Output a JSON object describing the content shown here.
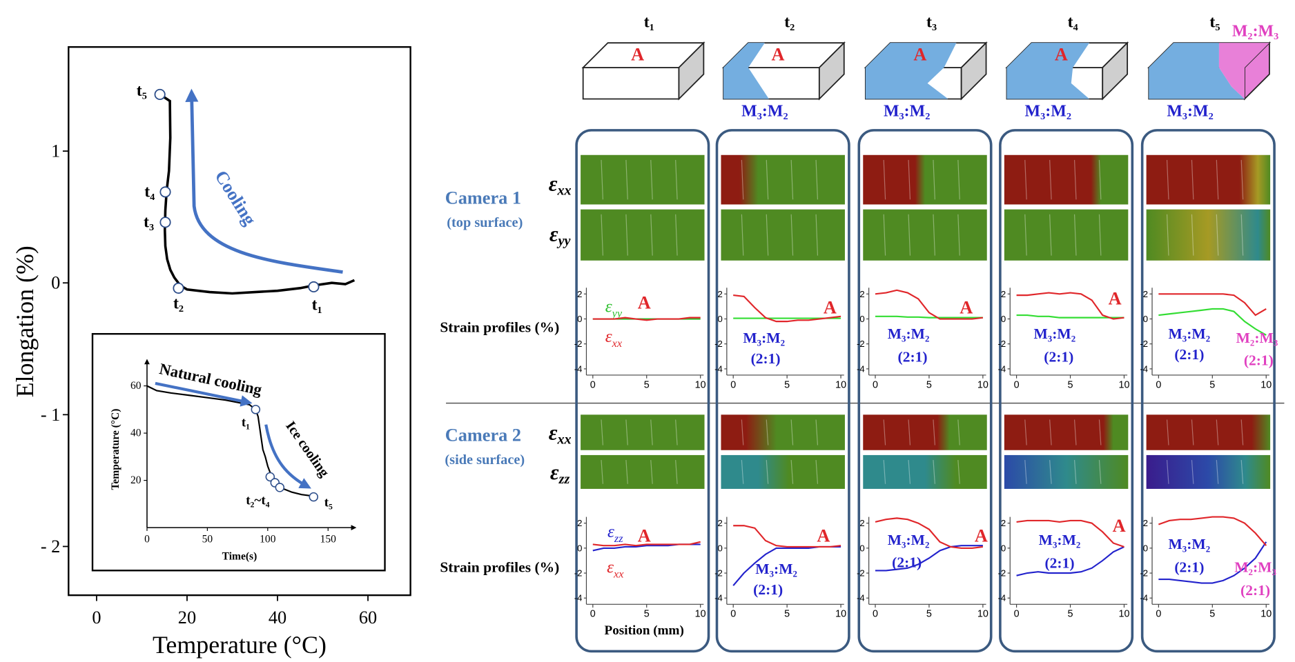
{
  "header": {
    "times": [
      "t₁",
      "t₂",
      "t₃",
      "t₄",
      "t₅"
    ],
    "box_A": [
      "A",
      "A",
      "A",
      "A"
    ],
    "box_phase": [
      "M₃:M₂",
      "M₃:M₂",
      "M₃:M₂",
      "M₃:M₂"
    ],
    "corner": "M₂:M₃"
  },
  "camera1": {
    "title": "Camera 1",
    "subtitle": "(top surface)",
    "maps": [
      {
        "text": "ε",
        "sub": "xx"
      },
      {
        "text": "ε",
        "sub": "yy"
      }
    ],
    "profile_label": "Strain profiles (%)"
  },
  "camera2": {
    "title": "Camera 2",
    "subtitle": "(side surface)",
    "maps": [
      {
        "text": "ε",
        "sub": "xx"
      },
      {
        "text": "ε",
        "sub": "zz"
      }
    ],
    "profile_label": "Strain profiles (%)"
  },
  "position_label": "Position (mm)",
  "chart_data": [
    {
      "type": "line",
      "xlabel": "Temperature (°C)",
      "ylabel": "Elongation (%)",
      "xlim": [
        -6.2,
        69.4
      ],
      "ylim": [
        -2.37,
        1.79
      ],
      "xticks": [
        0,
        20,
        40,
        60
      ],
      "yticks": [
        {
          "value": -2,
          "label": "- 2"
        },
        {
          "value": -1,
          "label": "- 1"
        },
        0,
        1
      ],
      "x": [
        14,
        16.2,
        16.3,
        16.0,
        15.5,
        15.2,
        15.1,
        15.2,
        15.6,
        16.3,
        17.2,
        18.5,
        20,
        25,
        30,
        35,
        40,
        45,
        48,
        52,
        55,
        57
      ],
      "series": [
        {
          "color": "#000000",
          "values": [
            1.43,
            1.38,
            1.1,
            0.85,
            0.7,
            0.55,
            0.4,
            0.28,
            0.18,
            0.1,
            0.04,
            -0.02,
            -0.05,
            -0.07,
            -0.08,
            -0.07,
            -0.06,
            -0.04,
            -0.02,
            0,
            -0.01,
            0.02
          ]
        }
      ],
      "markers": {
        "x": [
          48,
          18.1,
          15.2,
          15.2,
          14
        ],
        "y": [
          -0.03,
          -0.04,
          0.46,
          0.69,
          1.43
        ],
        "labels": [
          "t₁",
          "t₂",
          "t₃",
          "t₄",
          "t₅"
        ]
      },
      "annotation": "Cooling"
    },
    {
      "type": "line",
      "xlabel": "Time(s)",
      "ylabel": "Temperature (°C)",
      "xlim": [
        0,
        169
      ],
      "ylim": [
        0,
        67
      ],
      "xticks": [
        0,
        50,
        100,
        150
      ],
      "yticks": [
        20,
        40,
        60
      ],
      "x": [
        0,
        8,
        20,
        35,
        50,
        65,
        75,
        85,
        90,
        92,
        94,
        96,
        98,
        100,
        103,
        106,
        110,
        115,
        120,
        128,
        135,
        140
      ],
      "series": [
        {
          "color": "#000000",
          "values": [
            60,
            58,
            57,
            56,
            55,
            54,
            53,
            52,
            50,
            47,
            40,
            33,
            30,
            26,
            22,
            19,
            17,
            16,
            15,
            14,
            13.5,
            13
          ]
        }
      ],
      "markers": {
        "x": [
          90,
          102,
          106,
          110,
          138
        ],
        "y": [
          50,
          21.5,
          19,
          17,
          13
        ],
        "labels": [
          "t₁",
          "t₂~t₄",
          "t₅"
        ]
      },
      "annotations": [
        "Natural cooling",
        "Ice cooling"
      ]
    },
    {
      "type": "line",
      "xlim": [
        -0.6,
        10.3
      ],
      "ylim": [
        -4.5,
        2.5
      ],
      "xticks": [
        0,
        5,
        10
      ],
      "yticks": [
        -4,
        -2,
        0,
        2
      ],
      "x": [
        0,
        1,
        2,
        3,
        4,
        5,
        6,
        7,
        8,
        9,
        10
      ],
      "series": [
        {
          "name": "ε",
          "name_sub": "yy",
          "color": "#2fbf2f",
          "values": [
            0,
            0,
            0,
            0,
            0,
            0,
            0,
            0,
            0,
            0,
            0
          ]
        },
        {
          "name": "ε",
          "name_sub": "xx",
          "color": "#e0262a",
          "values": [
            0,
            0,
            0,
            0.1,
            0,
            -0.1,
            0,
            0,
            0,
            0.1,
            0.1
          ]
        }
      ],
      "annotations": [
        {
          "text": "A",
          "color": "#e0262a"
        }
      ]
    },
    {
      "type": "line",
      "xlim": [
        -0.6,
        10.3
      ],
      "ylim": [
        -4.5,
        2.5
      ],
      "xticks": [
        0,
        5,
        10
      ],
      "yticks": [
        -4,
        -2,
        0,
        2
      ],
      "x": [
        0,
        1,
        2,
        3,
        4,
        5,
        6,
        7,
        8,
        9,
        10
      ],
      "series": [
        {
          "color": "#33dd33",
          "values": [
            0.05,
            0.05,
            0.05,
            0.05,
            0.05,
            0.05,
            0.05,
            0.05,
            0.05,
            0.05,
            0.05
          ]
        },
        {
          "color": "#e0262a",
          "values": [
            1.9,
            1.8,
            0.9,
            0.1,
            -0.2,
            -0.2,
            -0.1,
            -0.1,
            0,
            0.1,
            0.2
          ]
        }
      ],
      "annotations": [
        {
          "text": "A",
          "color": "#e0262a"
        },
        {
          "text": "M₃:M₂",
          "color": "#2222cc"
        },
        {
          "text": "(2:1)",
          "color": "#2222cc"
        }
      ]
    },
    {
      "type": "line",
      "xlim": [
        -0.6,
        10.3
      ],
      "ylim": [
        -4.5,
        2.5
      ],
      "xticks": [
        0,
        5,
        10
      ],
      "yticks": [
        -4,
        -2,
        0,
        2
      ],
      "x": [
        0,
        1,
        2,
        3,
        4,
        5,
        6,
        7,
        8,
        9,
        10
      ],
      "series": [
        {
          "color": "#33dd33",
          "values": [
            0.2,
            0.2,
            0.2,
            0.15,
            0.15,
            0.1,
            0.1,
            0.1,
            0.1,
            0.1,
            0.1
          ]
        },
        {
          "color": "#e0262a",
          "values": [
            2.0,
            2.1,
            2.3,
            2.1,
            1.6,
            0.5,
            0,
            0,
            0,
            0,
            0.1
          ]
        }
      ],
      "annotations": [
        {
          "text": "A",
          "color": "#e0262a"
        },
        {
          "text": "M₃:M₂",
          "color": "#2222cc"
        },
        {
          "text": "(2:1)",
          "color": "#2222cc"
        }
      ]
    },
    {
      "type": "line",
      "xlim": [
        -0.6,
        10.3
      ],
      "ylim": [
        -4.5,
        2.5
      ],
      "xticks": [
        0,
        5,
        10
      ],
      "yticks": [
        -4,
        -2,
        0,
        2
      ],
      "x": [
        0,
        1,
        2,
        3,
        4,
        5,
        6,
        7,
        8,
        9,
        10
      ],
      "series": [
        {
          "color": "#33dd33",
          "values": [
            0.3,
            0.3,
            0.2,
            0.2,
            0.1,
            0.1,
            0.1,
            0.1,
            0.1,
            0.1,
            0.1
          ]
        },
        {
          "color": "#e0262a",
          "values": [
            1.9,
            1.9,
            2.0,
            2.1,
            2.0,
            2.1,
            2.0,
            1.5,
            0.3,
            0,
            0.1
          ]
        }
      ],
      "annotations": [
        {
          "text": "A",
          "color": "#e0262a"
        },
        {
          "text": "M₃:M₂",
          "color": "#2222cc"
        },
        {
          "text": "(2:1)",
          "color": "#2222cc"
        }
      ]
    },
    {
      "type": "line",
      "xlim": [
        -0.6,
        10.3
      ],
      "ylim": [
        -4.5,
        2.5
      ],
      "xticks": [
        0,
        5,
        10
      ],
      "yticks": [
        -4,
        -2,
        0,
        2
      ],
      "x": [
        0,
        1,
        2,
        3,
        4,
        5,
        6,
        7,
        8,
        9,
        10
      ],
      "series": [
        {
          "color": "#33dd33",
          "values": [
            0.3,
            0.4,
            0.5,
            0.6,
            0.7,
            0.8,
            0.8,
            0.6,
            -0.2,
            -0.8,
            -1.3
          ]
        },
        {
          "color": "#e0262a",
          "values": [
            2.0,
            2.0,
            2.0,
            2.0,
            2.0,
            2.0,
            2.0,
            1.9,
            1.3,
            0.3,
            0.8
          ]
        }
      ],
      "annotations": [
        {
          "text": "M₃:M₂",
          "color": "#2222cc"
        },
        {
          "text": "(2:1)",
          "color": "#2222cc"
        },
        {
          "text": "M₂:M₃",
          "color": "#e040c0"
        },
        {
          "text": "(2:1)",
          "color": "#e040c0"
        }
      ]
    },
    {
      "type": "line",
      "xlim": [
        -0.6,
        10.3
      ],
      "ylim": [
        -4.5,
        2.5
      ],
      "xticks": [
        0,
        5,
        10
      ],
      "yticks": [
        -4,
        -2,
        0,
        2
      ],
      "x": [
        0,
        1,
        2,
        3,
        4,
        5,
        6,
        7,
        8,
        9,
        10
      ],
      "series": [
        {
          "name": "ε",
          "name_sub": "zz",
          "color": "#2222cc",
          "values": [
            -0.2,
            0,
            0,
            0.1,
            0.1,
            0.2,
            0.2,
            0.2,
            0.3,
            0.3,
            0.3
          ]
        },
        {
          "name": "ε",
          "name_sub": "xx",
          "color": "#e0262a",
          "values": [
            0.3,
            0.2,
            0.2,
            0.3,
            0.2,
            0.3,
            0.3,
            0.3,
            0.3,
            0.3,
            0.5
          ]
        }
      ],
      "annotations": [
        {
          "text": "A",
          "color": "#e0262a"
        }
      ]
    },
    {
      "type": "line",
      "xlim": [
        -0.6,
        10.3
      ],
      "ylim": [
        -4.5,
        2.5
      ],
      "xticks": [
        0,
        5,
        10
      ],
      "yticks": [
        -4,
        -2,
        0,
        2
      ],
      "x": [
        0,
        1,
        2,
        3,
        4,
        5,
        6,
        7,
        8,
        9,
        10
      ],
      "series": [
        {
          "color": "#2222cc",
          "values": [
            -3.0,
            -2.0,
            -1.2,
            -0.5,
            0,
            0,
            0,
            0,
            0.1,
            0.1,
            0.1
          ]
        },
        {
          "color": "#e0262a",
          "values": [
            1.8,
            1.8,
            1.6,
            0.6,
            0.2,
            0.1,
            0.1,
            0.1,
            0.1,
            0.1,
            0.2
          ]
        }
      ],
      "annotations": [
        {
          "text": "A",
          "color": "#e0262a"
        },
        {
          "text": "M₃:M₂",
          "color": "#2222cc"
        },
        {
          "text": "(2:1)",
          "color": "#2222cc"
        }
      ]
    },
    {
      "type": "line",
      "xlim": [
        -0.6,
        10.3
      ],
      "ylim": [
        -4.5,
        2.5
      ],
      "xticks": [
        0,
        5,
        10
      ],
      "yticks": [
        -4,
        -2,
        0,
        2
      ],
      "x": [
        0,
        1,
        2,
        3,
        4,
        5,
        6,
        7,
        8,
        9,
        10
      ],
      "series": [
        {
          "color": "#2222cc",
          "values": [
            -1.8,
            -1.8,
            -1.7,
            -1.6,
            -1.3,
            -0.8,
            -0.2,
            0.1,
            0.2,
            0.2,
            0.2
          ]
        },
        {
          "color": "#e0262a",
          "values": [
            2.1,
            2.3,
            2.4,
            2.3,
            2.0,
            1.5,
            0.5,
            0.1,
            0,
            0,
            0.1
          ]
        }
      ],
      "annotations": [
        {
          "text": "A",
          "color": "#e0262a"
        },
        {
          "text": "M₃:M₂",
          "color": "#2222cc"
        },
        {
          "text": "(2:1)",
          "color": "#2222cc"
        }
      ]
    },
    {
      "type": "line",
      "xlim": [
        -0.6,
        10.3
      ],
      "ylim": [
        -4.5,
        2.5
      ],
      "xticks": [
        0,
        5,
        10
      ],
      "yticks": [
        -4,
        -2,
        0,
        2
      ],
      "x": [
        0,
        1,
        2,
        3,
        4,
        5,
        6,
        7,
        8,
        9,
        10
      ],
      "series": [
        {
          "color": "#2222cc",
          "values": [
            -2.2,
            -2.0,
            -1.9,
            -2.0,
            -2.0,
            -2.0,
            -1.9,
            -1.6,
            -1.0,
            -0.3,
            0.1
          ]
        },
        {
          "color": "#e0262a",
          "values": [
            2.1,
            2.2,
            2.2,
            2.2,
            2.1,
            2.2,
            2.2,
            2.0,
            1.3,
            0.4,
            0.1
          ]
        }
      ],
      "annotations": [
        {
          "text": "A",
          "color": "#e0262a"
        },
        {
          "text": "M₃:M₂",
          "color": "#2222cc"
        },
        {
          "text": "(2:1)",
          "color": "#2222cc"
        }
      ]
    },
    {
      "type": "line",
      "xlim": [
        -0.6,
        10.3
      ],
      "ylim": [
        -4.5,
        2.5
      ],
      "xticks": [
        0,
        5,
        10
      ],
      "yticks": [
        -4,
        -2,
        0,
        2
      ],
      "x": [
        0,
        1,
        2,
        3,
        4,
        5,
        6,
        7,
        8,
        9,
        10
      ],
      "series": [
        {
          "color": "#2222cc",
          "values": [
            -2.5,
            -2.5,
            -2.6,
            -2.7,
            -2.8,
            -2.8,
            -2.6,
            -2.2,
            -1.6,
            -0.8,
            0.5
          ]
        },
        {
          "color": "#e0262a",
          "values": [
            1.9,
            2.2,
            2.3,
            2.3,
            2.4,
            2.5,
            2.5,
            2.4,
            2.0,
            1.2,
            0.2
          ]
        }
      ],
      "annotations": [
        {
          "text": "M₃:M₂",
          "color": "#2222cc"
        },
        {
          "text": "(2:1)",
          "color": "#2222cc"
        },
        {
          "text": "M₂:M₃",
          "color": "#e040c0"
        },
        {
          "text": "(2:1)",
          "color": "#e040c0"
        }
      ]
    }
  ]
}
